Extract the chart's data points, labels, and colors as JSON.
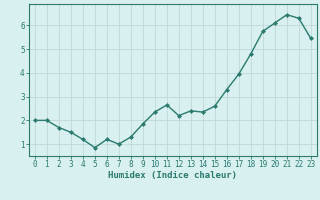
{
  "x": [
    0,
    1,
    2,
    3,
    4,
    5,
    6,
    7,
    8,
    9,
    10,
    11,
    12,
    13,
    14,
    15,
    16,
    17,
    18,
    19,
    20,
    21,
    22,
    23
  ],
  "y": [
    2.0,
    2.0,
    1.7,
    1.5,
    1.2,
    0.85,
    1.2,
    1.0,
    1.3,
    1.85,
    2.35,
    2.65,
    2.2,
    2.4,
    2.35,
    2.6,
    3.3,
    3.95,
    4.8,
    5.75,
    6.1,
    6.45,
    6.3,
    5.45
  ],
  "line_color": "#2a7a6e",
  "marker": "D",
  "marker_size": 2.0,
  "bg_color": "#d8f0f0",
  "grid_color": "#c0d8d8",
  "axis_color": "#2a7a6e",
  "xlabel": "Humidex (Indice chaleur)",
  "xlim": [
    -0.5,
    23.5
  ],
  "ylim": [
    0.5,
    6.9
  ],
  "yticks": [
    1,
    2,
    3,
    4,
    5,
    6
  ],
  "xticks": [
    0,
    1,
    2,
    3,
    4,
    5,
    6,
    7,
    8,
    9,
    10,
    11,
    12,
    13,
    14,
    15,
    16,
    17,
    18,
    19,
    20,
    21,
    22,
    23
  ],
  "linewidth": 1.0,
  "tick_font_size": 5.5,
  "xlabel_font_size": 6.5
}
